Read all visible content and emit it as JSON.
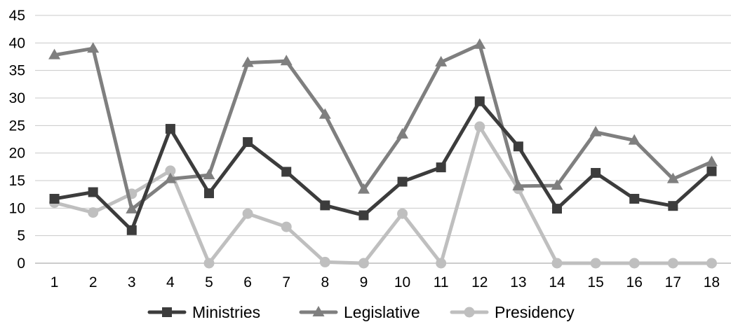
{
  "chart_data": {
    "type": "line",
    "title": "",
    "xlabel": "",
    "ylabel": "",
    "categories": [
      "1",
      "2",
      "3",
      "4",
      "5",
      "6",
      "7",
      "8",
      "9",
      "10",
      "11",
      "12",
      "13",
      "14",
      "15",
      "16",
      "17",
      "18"
    ],
    "ylim": [
      0,
      45
    ],
    "yticks": [
      0,
      5,
      10,
      15,
      20,
      25,
      30,
      35,
      40,
      45
    ],
    "grid": "horizontal",
    "legend_position": "bottom",
    "series": [
      {
        "name": "Ministries",
        "marker": "square",
        "color": "#3c3c3c",
        "values": [
          11.7,
          12.9,
          6.0,
          24.4,
          12.7,
          22.0,
          16.6,
          10.5,
          8.7,
          14.8,
          17.4,
          29.4,
          21.2,
          9.9,
          16.4,
          11.7,
          10.4,
          16.7
        ]
      },
      {
        "name": "Legislative",
        "marker": "triangle",
        "color": "#7f7f7f",
        "values": [
          37.8,
          39.0,
          9.8,
          15.3,
          16.0,
          36.4,
          36.7,
          27.0,
          13.4,
          23.4,
          36.5,
          39.7,
          14.0,
          14.1,
          23.8,
          22.3,
          15.3,
          18.4
        ]
      },
      {
        "name": "Presidency",
        "marker": "circle",
        "color": "#bfbfbf",
        "values": [
          11.0,
          9.2,
          12.6,
          16.8,
          0,
          9.0,
          6.6,
          0.2,
          0,
          9.0,
          0,
          24.8,
          13.5,
          0,
          0,
          0,
          0,
          0
        ]
      }
    ]
  }
}
